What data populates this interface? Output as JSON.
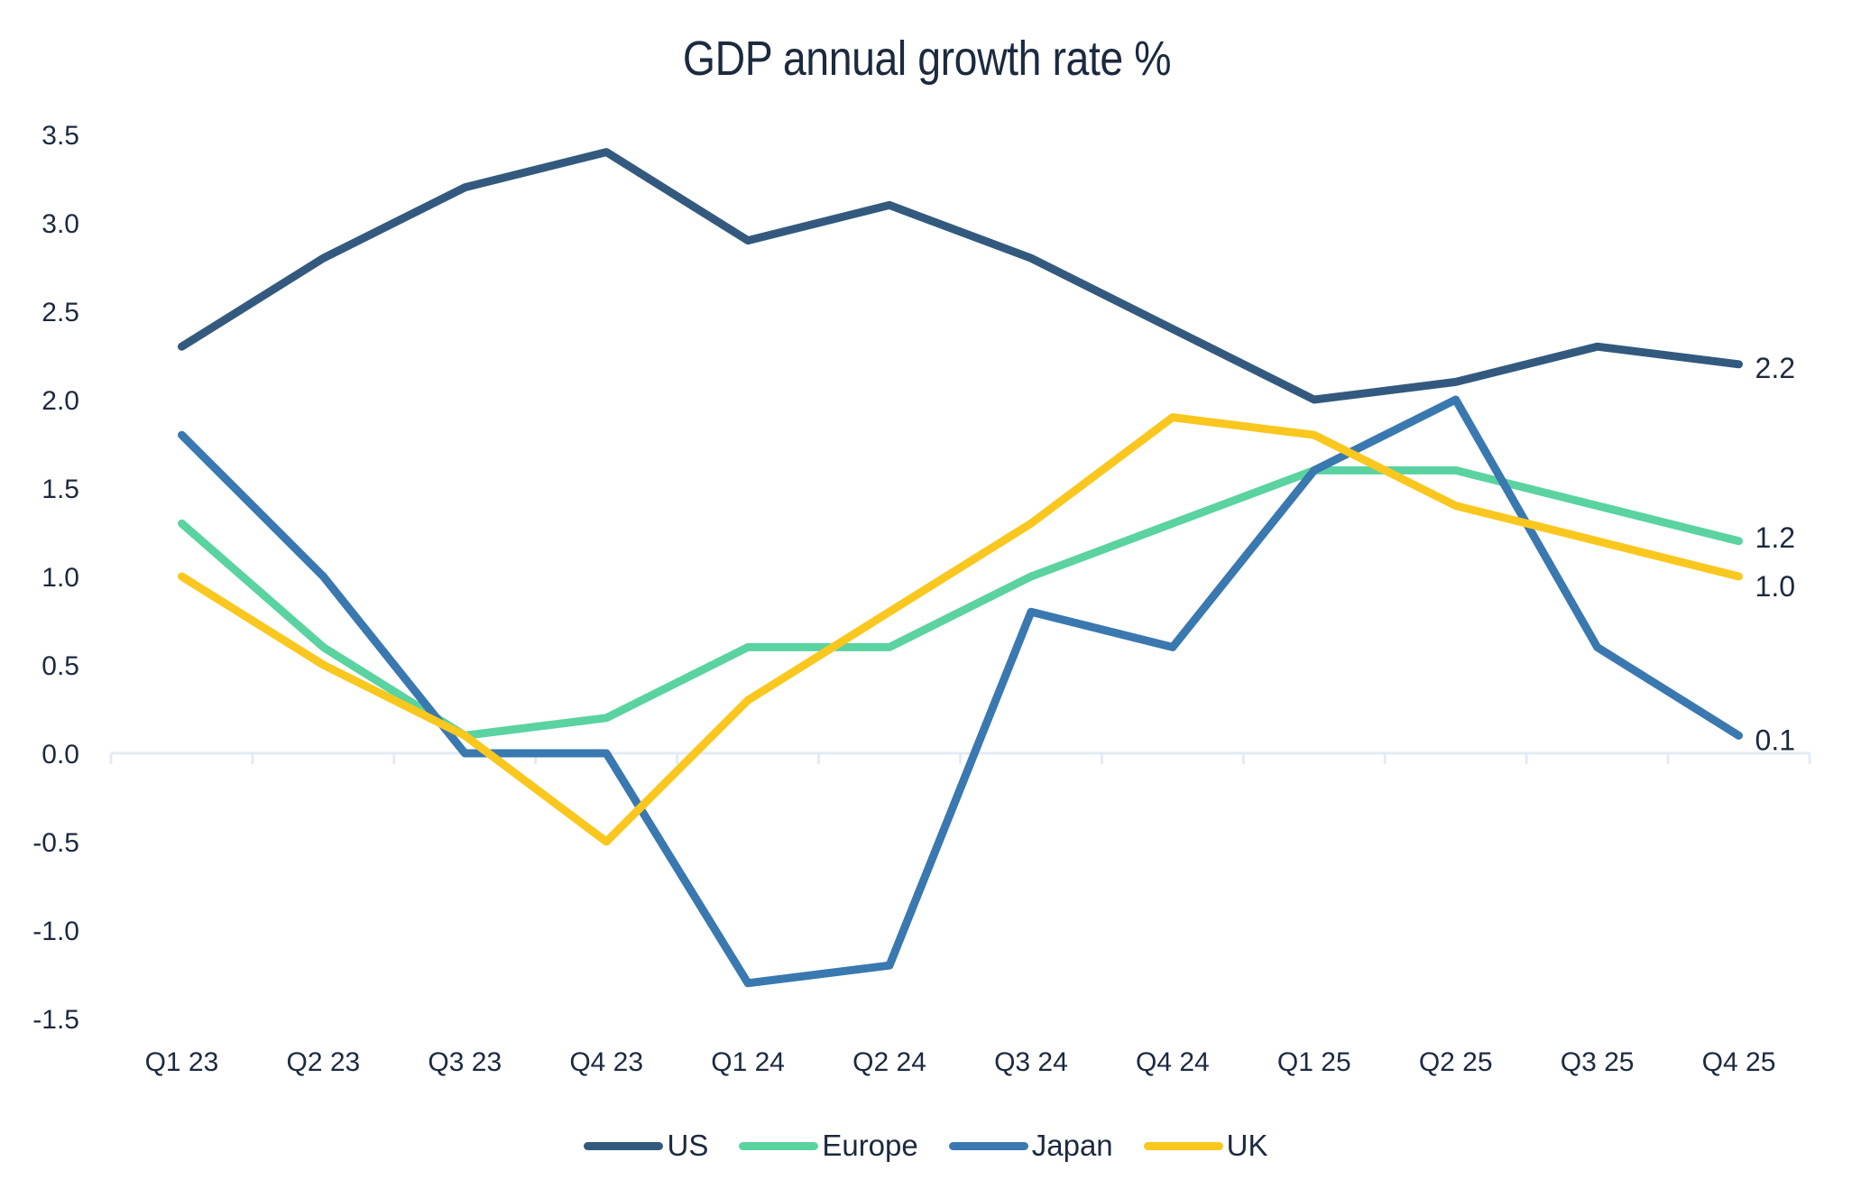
{
  "chart_data": {
    "type": "line",
    "title": "GDP annual growth rate %",
    "xlabel": "",
    "ylabel": "",
    "categories": [
      "Q1 23",
      "Q2 23",
      "Q3 23",
      "Q4 23",
      "Q1 24",
      "Q2 24",
      "Q3 24",
      "Q4 24",
      "Q1 25",
      "Q2 25",
      "Q3 25",
      "Q4 25"
    ],
    "ylim": [
      -1.5,
      3.5
    ],
    "yticks": [
      3.5,
      3.0,
      2.5,
      2.0,
      1.5,
      1.0,
      0.5,
      0.0,
      -0.5,
      -1.0,
      -1.5
    ],
    "ytick_labels": [
      "3.5",
      "3.0",
      "2.5",
      "2.0",
      "1.5",
      "1.0",
      "0.5",
      "0.0",
      "-0.5",
      "-1.0",
      "-1.5"
    ],
    "grid": false,
    "legend_position": "bottom-center",
    "series": [
      {
        "name": "US",
        "color": "#335a7e",
        "values": [
          2.3,
          2.8,
          3.2,
          3.4,
          2.9,
          3.1,
          2.8,
          2.4,
          2.0,
          2.1,
          2.3,
          2.2
        ],
        "end_label": "2.2"
      },
      {
        "name": "Europe",
        "color": "#5ad3a0",
        "values": [
          1.3,
          0.6,
          0.1,
          0.2,
          0.6,
          0.6,
          1.0,
          1.3,
          1.6,
          1.6,
          1.4,
          1.2
        ],
        "end_label": "1.2"
      },
      {
        "name": "Japan",
        "color": "#3a78b0",
        "values": [
          1.8,
          1.0,
          0.0,
          0.0,
          -1.3,
          -1.2,
          0.8,
          0.6,
          1.6,
          2.0,
          0.6,
          0.1
        ],
        "end_label": "0.1"
      },
      {
        "name": "UK",
        "color": "#fac71e",
        "values": [
          1.0,
          0.5,
          0.1,
          -0.5,
          0.3,
          0.8,
          1.3,
          1.9,
          1.8,
          1.4,
          1.2,
          1.0
        ],
        "end_label": "1.0"
      }
    ],
    "axis_color": "#e3ebf5",
    "text_color": "#1c2a3f"
  }
}
